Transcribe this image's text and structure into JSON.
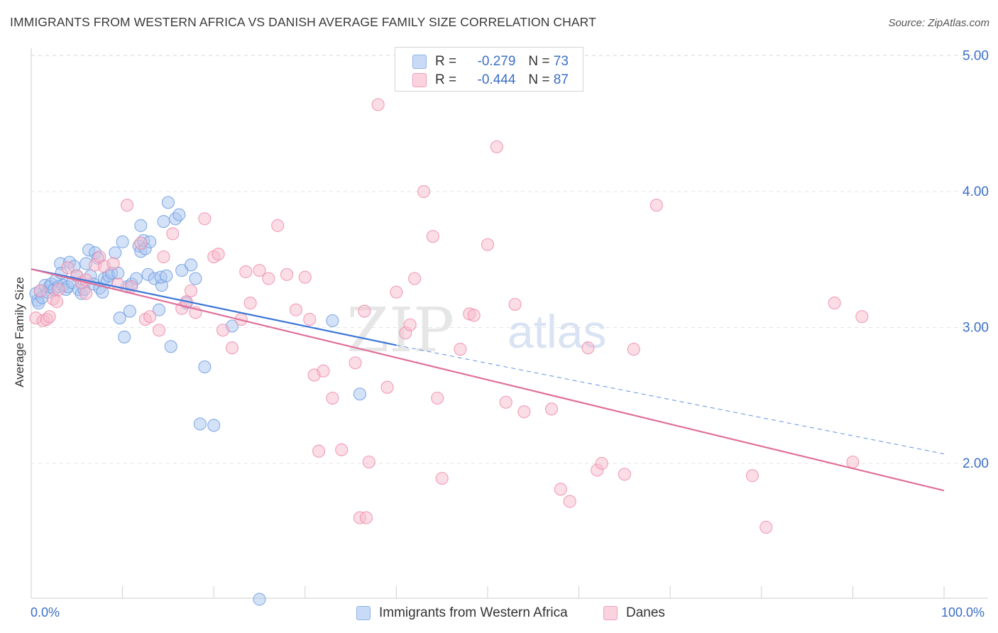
{
  "title": "IMMIGRANTS FROM WESTERN AFRICA VS DANISH AVERAGE FAMILY SIZE CORRELATION CHART",
  "source": "Source: ZipAtlas.com",
  "watermark": {
    "zip": "ZIP",
    "atlas": "atlas"
  },
  "legend": {
    "r_label": "R =",
    "n_label": "N =",
    "rows": [
      {
        "r": "-0.279",
        "n": "73",
        "color": "#8fb4ea",
        "fill": "#c8daf6"
      },
      {
        "r": "-0.444",
        "n": "87",
        "color": "#f0a0b8",
        "fill": "#fbd3df"
      }
    ]
  },
  "chart_data": {
    "type": "scatter",
    "title": "IMMIGRANTS FROM WESTERN AFRICA VS DANISH AVERAGE FAMILY SIZE CORRELATION CHART",
    "ylabel": "Average Family Size",
    "xlabel": "",
    "xlim": [
      0,
      100
    ],
    "ylim": [
      1.0,
      5.3
    ],
    "x_tick_labels": [
      "0.0%",
      "100.0%"
    ],
    "y_ticks": [
      2.0,
      3.0,
      4.0,
      5.0
    ],
    "y_tick_labels": [
      "2.00",
      "3.00",
      "4.00",
      "5.00"
    ],
    "grid": "horizontal dashed",
    "legend_position": "top-center",
    "series": [
      {
        "name": "Immigrants from Western Africa",
        "color": "#6b9be0",
        "fill": "#a9c6f0",
        "trend": {
          "x0": 0,
          "y0": 3.43,
          "x1": 40,
          "y1": 2.87,
          "dashed_to_x": 100,
          "dashed_to_y": 2.07
        },
        "points": [
          [
            0.5,
            3.25
          ],
          [
            0.7,
            3.2
          ],
          [
            0.8,
            3.18
          ],
          [
            1.0,
            3.27
          ],
          [
            1.2,
            3.22
          ],
          [
            1.5,
            3.31
          ],
          [
            1.8,
            3.26
          ],
          [
            2.0,
            3.3
          ],
          [
            2.2,
            3.32
          ],
          [
            2.5,
            3.28
          ],
          [
            2.7,
            3.35
          ],
          [
            3.0,
            3.3
          ],
          [
            3.2,
            3.47
          ],
          [
            3.3,
            3.4
          ],
          [
            3.5,
            3.31
          ],
          [
            3.8,
            3.28
          ],
          [
            4.0,
            3.3
          ],
          [
            4.2,
            3.48
          ],
          [
            4.5,
            3.33
          ],
          [
            4.7,
            3.45
          ],
          [
            5.0,
            3.38
          ],
          [
            5.2,
            3.28
          ],
          [
            5.5,
            3.25
          ],
          [
            5.8,
            3.28
          ],
          [
            6.0,
            3.47
          ],
          [
            6.3,
            3.57
          ],
          [
            6.5,
            3.38
          ],
          [
            6.8,
            3.32
          ],
          [
            7.0,
            3.55
          ],
          [
            7.3,
            3.51
          ],
          [
            7.5,
            3.29
          ],
          [
            7.8,
            3.26
          ],
          [
            8.0,
            3.36
          ],
          [
            8.3,
            3.34
          ],
          [
            8.5,
            3.38
          ],
          [
            8.8,
            3.4
          ],
          [
            9.2,
            3.55
          ],
          [
            9.5,
            3.4
          ],
          [
            9.7,
            3.07
          ],
          [
            10.0,
            3.63
          ],
          [
            10.2,
            2.93
          ],
          [
            10.5,
            3.3
          ],
          [
            10.8,
            3.12
          ],
          [
            11.0,
            3.32
          ],
          [
            11.5,
            3.36
          ],
          [
            11.8,
            3.6
          ],
          [
            12.0,
            3.56
          ],
          [
            12.3,
            3.64
          ],
          [
            12.5,
            3.58
          ],
          [
            12.8,
            3.39
          ],
          [
            13.0,
            3.63
          ],
          [
            13.5,
            3.36
          ],
          [
            14.0,
            3.13
          ],
          [
            14.3,
            3.31
          ],
          [
            14.5,
            3.78
          ],
          [
            15.0,
            3.92
          ],
          [
            15.3,
            2.86
          ],
          [
            15.8,
            3.8
          ],
          [
            16.2,
            3.83
          ],
          [
            16.5,
            3.42
          ],
          [
            17.0,
            3.18
          ],
          [
            17.5,
            3.46
          ],
          [
            18.0,
            3.36
          ],
          [
            12.0,
            3.75
          ],
          [
            14.2,
            3.37
          ],
          [
            14.8,
            3.38
          ],
          [
            18.5,
            2.29
          ],
          [
            20.0,
            2.28
          ],
          [
            19.0,
            2.71
          ],
          [
            22.0,
            3.01
          ],
          [
            33.0,
            3.05
          ],
          [
            36.0,
            2.51
          ],
          [
            25.0,
            1.0
          ]
        ]
      },
      {
        "name": "Danes",
        "color": "#ee8aa8",
        "fill": "#f7bccd",
        "trend": {
          "x0": 0,
          "y0": 3.43,
          "x1": 100,
          "y1": 1.8
        },
        "points": [
          [
            0.5,
            3.07
          ],
          [
            1.0,
            3.27
          ],
          [
            1.3,
            3.05
          ],
          [
            1.7,
            3.06
          ],
          [
            2.0,
            3.08
          ],
          [
            2.4,
            3.21
          ],
          [
            2.8,
            3.19
          ],
          [
            3.0,
            3.28
          ],
          [
            4.0,
            3.44
          ],
          [
            5.0,
            3.38
          ],
          [
            5.5,
            3.33
          ],
          [
            6.0,
            3.25
          ],
          [
            7.0,
            3.46
          ],
          [
            7.5,
            3.52
          ],
          [
            8.0,
            3.45
          ],
          [
            9.0,
            3.47
          ],
          [
            9.5,
            3.32
          ],
          [
            10.5,
            3.9
          ],
          [
            11.0,
            3.3
          ],
          [
            12.0,
            3.62
          ],
          [
            12.5,
            3.06
          ],
          [
            13.0,
            3.08
          ],
          [
            14.0,
            2.98
          ],
          [
            14.5,
            3.52
          ],
          [
            15.5,
            3.69
          ],
          [
            16.5,
            3.14
          ],
          [
            17.0,
            3.19
          ],
          [
            17.5,
            3.27
          ],
          [
            18.0,
            3.11
          ],
          [
            19.0,
            3.8
          ],
          [
            20.0,
            3.52
          ],
          [
            20.5,
            3.54
          ],
          [
            21.0,
            2.98
          ],
          [
            22.0,
            2.85
          ],
          [
            23.0,
            3.06
          ],
          [
            23.5,
            3.41
          ],
          [
            24.0,
            3.18
          ],
          [
            25.0,
            3.42
          ],
          [
            26.0,
            3.36
          ],
          [
            27.0,
            3.75
          ],
          [
            28.0,
            3.39
          ],
          [
            29.0,
            3.13
          ],
          [
            30.0,
            3.37
          ],
          [
            30.5,
            3.06
          ],
          [
            31.0,
            2.65
          ],
          [
            31.5,
            2.09
          ],
          [
            32.0,
            2.68
          ],
          [
            33.0,
            2.48
          ],
          [
            34.0,
            2.1
          ],
          [
            35.5,
            2.74
          ],
          [
            36.0,
            1.6
          ],
          [
            36.5,
            3.12
          ],
          [
            37.0,
            2.01
          ],
          [
            38.0,
            4.64
          ],
          [
            39.0,
            2.56
          ],
          [
            40.0,
            3.26
          ],
          [
            41.0,
            2.96
          ],
          [
            41.5,
            3.02
          ],
          [
            42.0,
            3.36
          ],
          [
            43.0,
            4.0
          ],
          [
            44.0,
            3.67
          ],
          [
            44.5,
            2.48
          ],
          [
            45.0,
            1.89
          ],
          [
            47.0,
            2.84
          ],
          [
            48.0,
            3.1
          ],
          [
            48.5,
            3.09
          ],
          [
            50.0,
            3.61
          ],
          [
            51.0,
            4.33
          ],
          [
            52.0,
            2.45
          ],
          [
            53.0,
            3.17
          ],
          [
            54.0,
            2.38
          ],
          [
            57.0,
            2.4
          ],
          [
            58.0,
            1.81
          ],
          [
            59.0,
            1.72
          ],
          [
            61.0,
            2.85
          ],
          [
            62.0,
            1.95
          ],
          [
            62.5,
            2.0
          ],
          [
            65.0,
            1.92
          ],
          [
            66.0,
            2.84
          ],
          [
            68.5,
            3.9
          ],
          [
            79.0,
            1.91
          ],
          [
            80.5,
            1.53
          ],
          [
            88.0,
            3.18
          ],
          [
            91.0,
            3.08
          ],
          [
            90.0,
            2.01
          ],
          [
            36.7,
            1.6
          ],
          [
            6.0,
            3.35
          ]
        ]
      }
    ]
  }
}
